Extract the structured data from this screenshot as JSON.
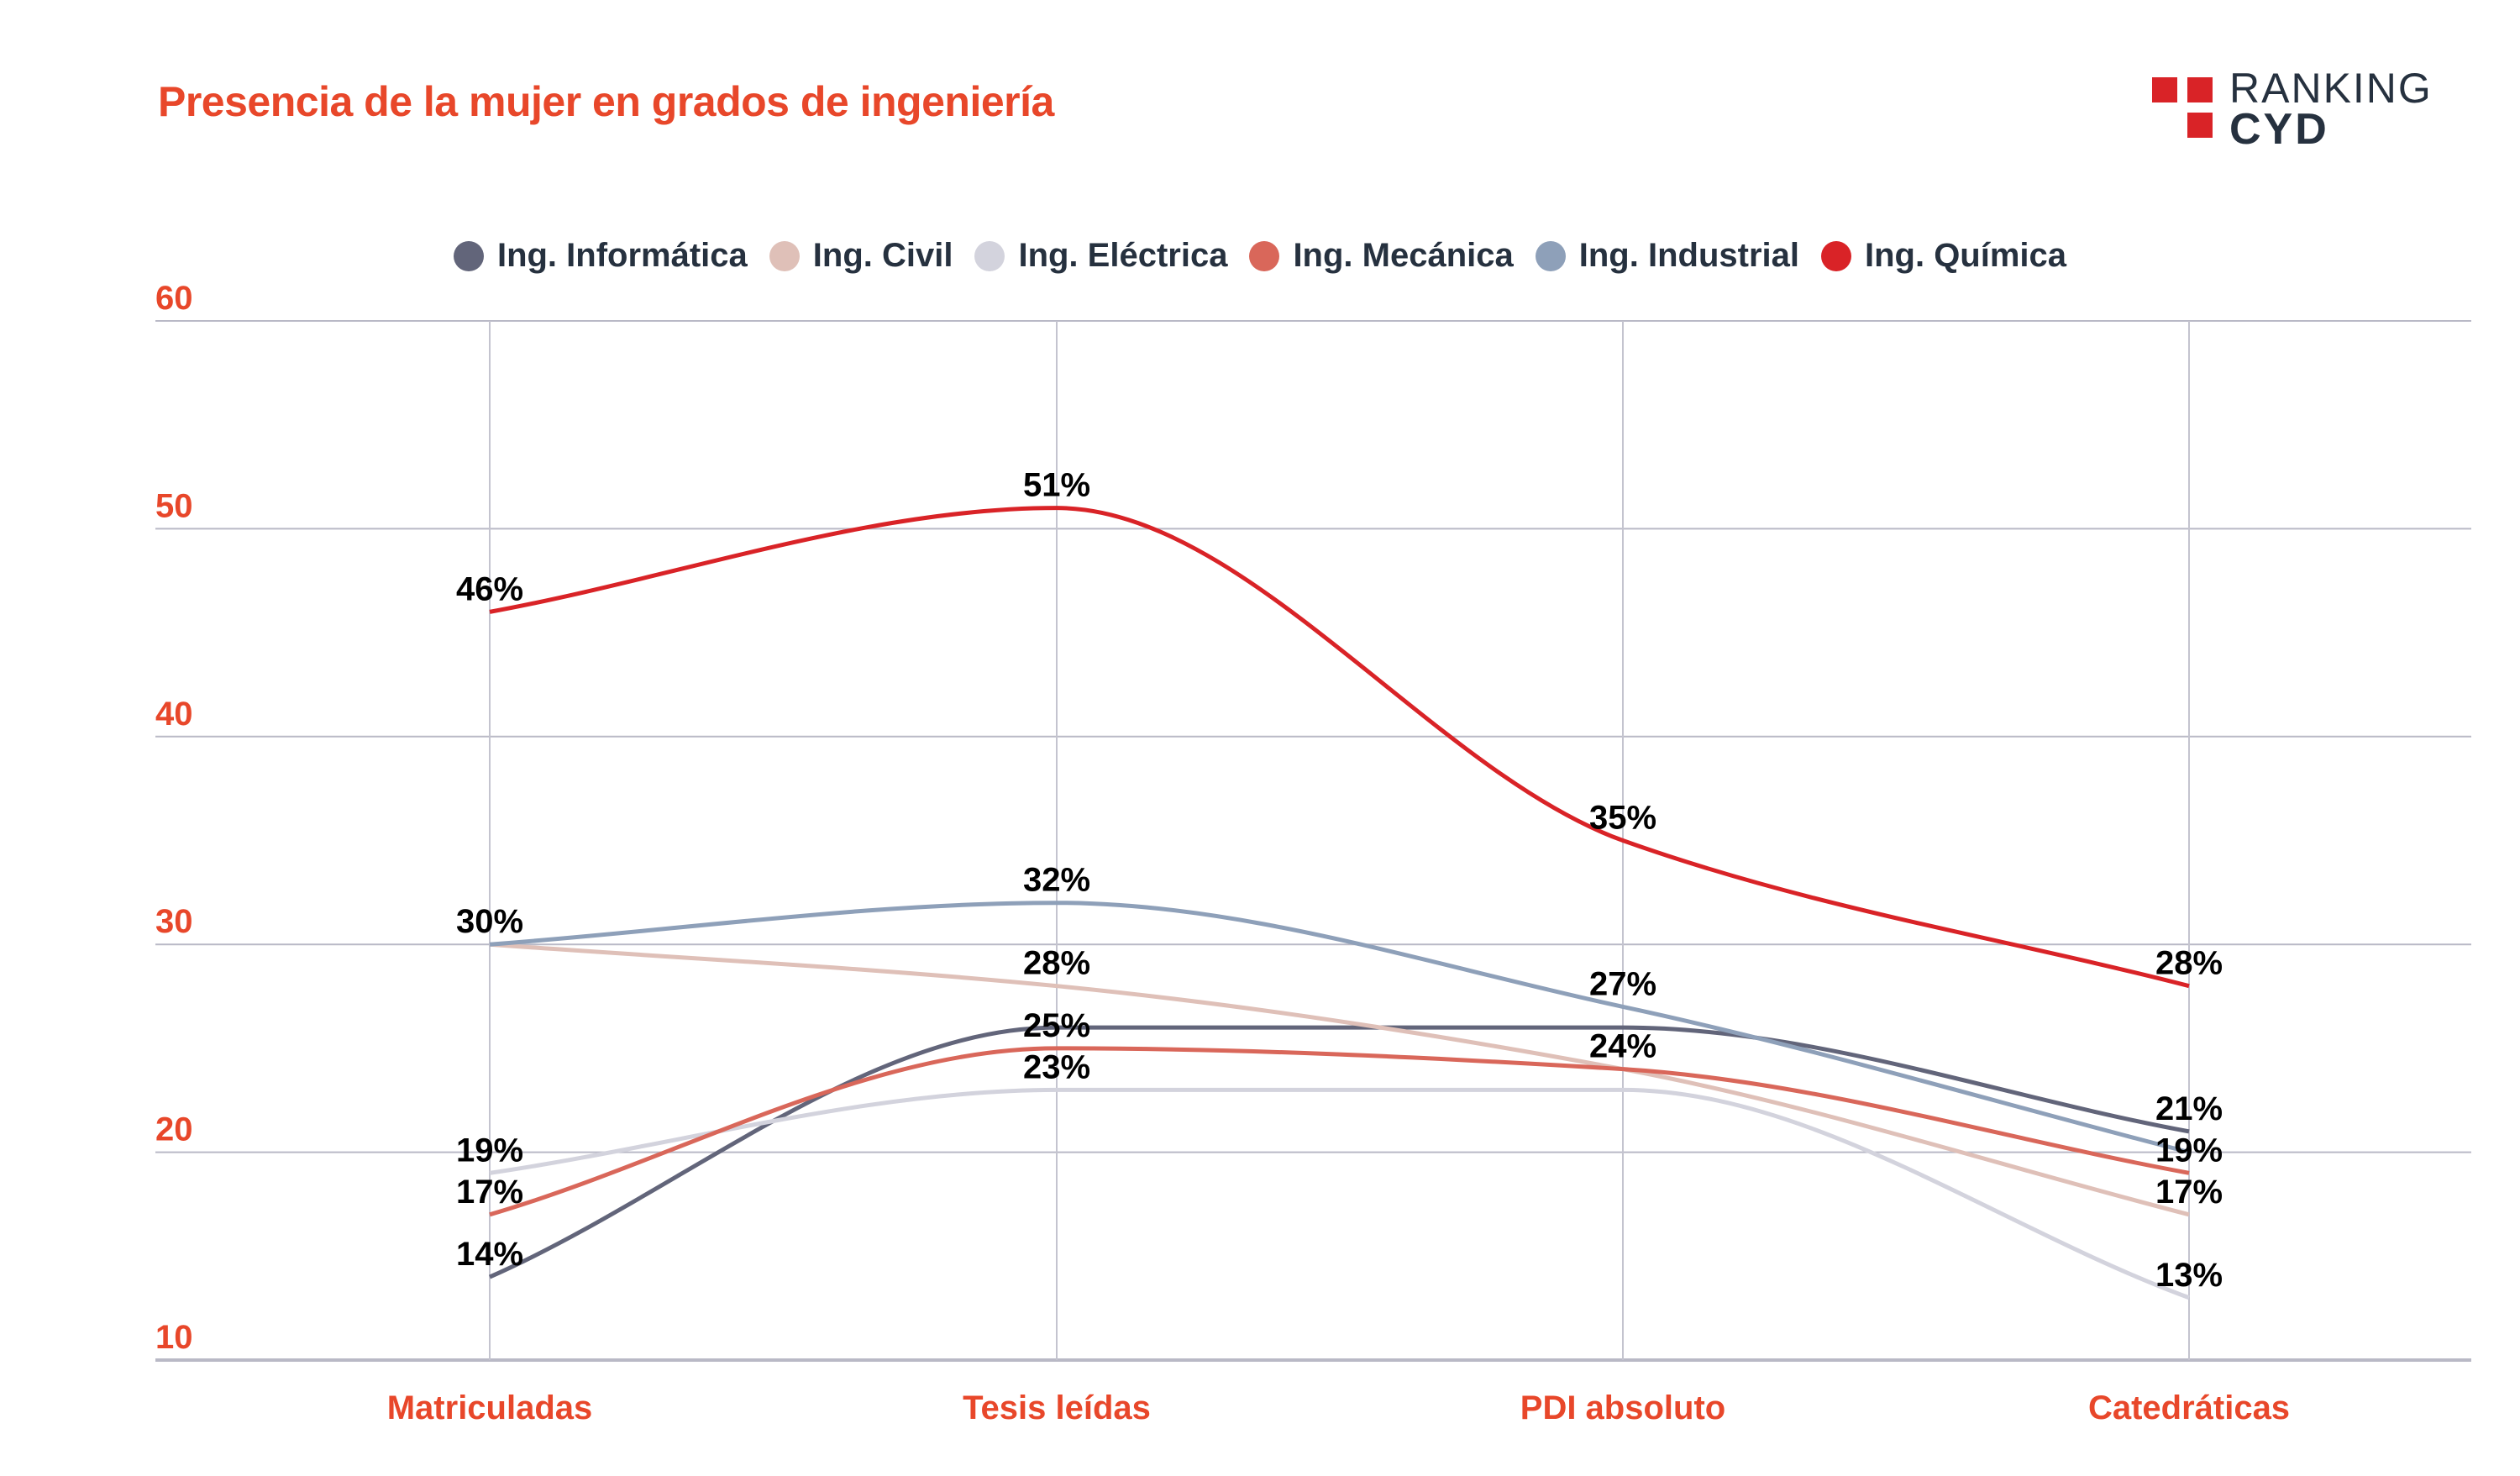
{
  "header": {
    "title": "Presencia de la mujer en grados de ingeniería",
    "logo": {
      "line1": "RANKING",
      "line2": "CYD",
      "square_color": "#d92327",
      "text_color": "#26313f"
    }
  },
  "chart_data": {
    "type": "line",
    "title": "Presencia de la mujer en grados de ingeniería",
    "xlabel": "",
    "ylabel": "",
    "categories": [
      "Matriculadas",
      "Tesis leídas",
      "PDI absoluto",
      "Catedráticas"
    ],
    "ylim": [
      10,
      60
    ],
    "yticks": [
      10,
      20,
      30,
      40,
      50,
      60
    ],
    "grid": true,
    "legend_position": "top",
    "smooth": true,
    "series": [
      {
        "name": "Ing. Informática",
        "color": "#62657a",
        "values": [
          14,
          26,
          26,
          21
        ],
        "labels": [
          "14%",
          null,
          null,
          "21%"
        ]
      },
      {
        "name": "Ing. Civil",
        "color": "#dfc0b8",
        "values": [
          30,
          28,
          24,
          17
        ],
        "labels": [
          null,
          "28%",
          null,
          "17%"
        ]
      },
      {
        "name": "Ing. Eléctrica",
        "color": "#d3d3dd",
        "values": [
          19,
          23,
          23,
          13
        ],
        "labels": [
          "19%",
          "23%",
          null,
          "13%"
        ]
      },
      {
        "name": "Ing. Mecánica",
        "color": "#d9675a",
        "values": [
          17,
          25,
          24,
          19
        ],
        "labels": [
          "17%",
          "25%",
          "24%",
          "19%"
        ]
      },
      {
        "name": "Ing. Industrial",
        "color": "#8ea0b9",
        "values": [
          30,
          32,
          27,
          20
        ],
        "labels": [
          "30%",
          "32%",
          "27%",
          null
        ]
      },
      {
        "name": "Ing. Química",
        "color": "#d92327",
        "values": [
          46,
          51,
          35,
          28
        ],
        "labels": [
          "46%",
          "51%",
          "35%",
          "28%"
        ]
      }
    ]
  }
}
